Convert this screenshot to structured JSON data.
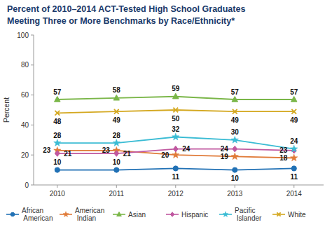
{
  "chart_data": {
    "type": "line",
    "title": "Percent of 2010–2014 ACT-Tested High School Graduates",
    "subtitle": "Meeting Three or More Benchmarks by Race/Ethnicity*",
    "ylabel": "Percent",
    "x": [
      2010,
      2011,
      2012,
      2013,
      2014
    ],
    "xlim": [
      2009.6,
      2014.5
    ],
    "xticks": [
      2010,
      2011,
      2012,
      2013,
      2014
    ],
    "ylim": [
      0,
      100
    ],
    "yticks": [
      0,
      20,
      40,
      60,
      80,
      100
    ],
    "grid": false,
    "legend": "bottom",
    "data_labels": true,
    "series": [
      {
        "name": "African American",
        "color": "#2171b5",
        "marker": "circle",
        "values": [
          10,
          10,
          11,
          10,
          11
        ]
      },
      {
        "name": "American Indian",
        "color": "#e07b39",
        "marker": "star",
        "values": [
          23,
          23,
          20,
          19,
          18
        ]
      },
      {
        "name": "Asian",
        "color": "#7ab648",
        "marker": "triangle",
        "values": [
          57,
          58,
          59,
          57,
          57
        ]
      },
      {
        "name": "Hispanic",
        "color": "#c058a0",
        "marker": "diamond",
        "values": [
          21,
          21,
          24,
          24,
          23
        ]
      },
      {
        "name": "Pacific Islander",
        "color": "#3bbcd4",
        "marker": "star",
        "values": [
          28,
          28,
          32,
          30,
          24
        ]
      },
      {
        "name": "White",
        "color": "#d4a820",
        "marker": "x",
        "values": [
          48,
          49,
          50,
          49,
          49
        ]
      }
    ]
  }
}
